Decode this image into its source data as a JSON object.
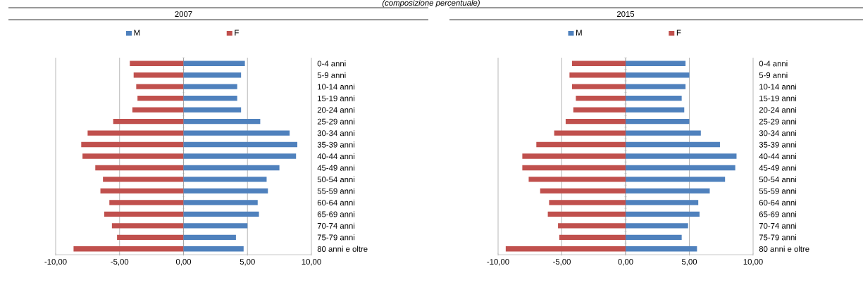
{
  "chart_data": [
    {
      "type": "bar",
      "orientation": "horizontal",
      "title": "2007",
      "annotations": [
        "(composizione percentuale)"
      ],
      "categories": [
        "0-4 anni",
        "5-9 anni",
        "10-14 anni",
        "15-19 anni",
        "20-24 anni",
        "25-29 anni",
        "30-34 anni",
        "35-39 anni",
        "40-44 anni",
        "45-49 anni",
        "50-54 anni",
        "55-59 anni",
        "60-64 anni",
        "65-69 anni",
        "70-74 anni",
        "75-79 anni",
        "80 anni e oltre"
      ],
      "series": [
        {
          "name": "M",
          "color": "#4f81bd",
          "values": [
            4.8,
            4.5,
            4.2,
            4.2,
            4.5,
            6.0,
            8.3,
            8.9,
            8.8,
            7.5,
            6.5,
            6.6,
            5.8,
            5.9,
            5.0,
            4.1,
            4.7
          ]
        },
        {
          "name": "F",
          "color": "#c0504d",
          "values": [
            -4.2,
            -3.9,
            -3.7,
            -3.6,
            -4.0,
            -5.5,
            -7.5,
            -8.0,
            -7.9,
            -6.9,
            -6.3,
            -6.5,
            -5.8,
            -6.2,
            -5.6,
            -5.2,
            -8.6
          ]
        }
      ],
      "xlim": [
        -10,
        10
      ],
      "xticks": [
        {
          "value": -10,
          "label": "-10,00"
        },
        {
          "value": -5,
          "label": "-5,00"
        },
        {
          "value": 0,
          "label": "0,00"
        },
        {
          "value": 5,
          "label": "5,00"
        },
        {
          "value": 10,
          "label": "10,00"
        }
      ],
      "grid": "x",
      "legend": "top",
      "stacked": true
    },
    {
      "type": "bar",
      "orientation": "horizontal",
      "title": "2015",
      "categories": [
        "0-4 anni",
        "5-9 anni",
        "10-14 anni",
        "15-19 anni",
        "20-24 anni",
        "25-29 anni",
        "30-34 anni",
        "35-39 anni",
        "40-44 anni",
        "45-49 anni",
        "50-54 anni",
        "55-59 anni",
        "60-64 anni",
        "65-69 anni",
        "70-74 anni",
        "75-79 anni",
        "80 anni e oltre"
      ],
      "series": [
        {
          "name": "M",
          "color": "#4f81bd",
          "values": [
            4.7,
            5.0,
            4.7,
            4.4,
            4.6,
            5.0,
            5.9,
            7.4,
            8.7,
            8.6,
            7.8,
            6.6,
            5.7,
            5.8,
            4.9,
            4.4,
            5.6
          ]
        },
        {
          "name": "F",
          "color": "#c0504d",
          "values": [
            -4.2,
            -4.4,
            -4.2,
            -3.9,
            -4.1,
            -4.7,
            -5.6,
            -7.0,
            -8.1,
            -8.1,
            -7.6,
            -6.7,
            -6.0,
            -6.1,
            -5.3,
            -5.2,
            -9.4
          ]
        }
      ],
      "xlim": [
        -10,
        10
      ],
      "xticks": [
        {
          "value": -10,
          "label": "-10,00"
        },
        {
          "value": -5,
          "label": "-5,00"
        },
        {
          "value": 0,
          "label": "0,00"
        },
        {
          "value": 5,
          "label": "5,00"
        },
        {
          "value": 10,
          "label": "10,00"
        }
      ],
      "grid": "x",
      "legend": "top",
      "stacked": true
    }
  ]
}
